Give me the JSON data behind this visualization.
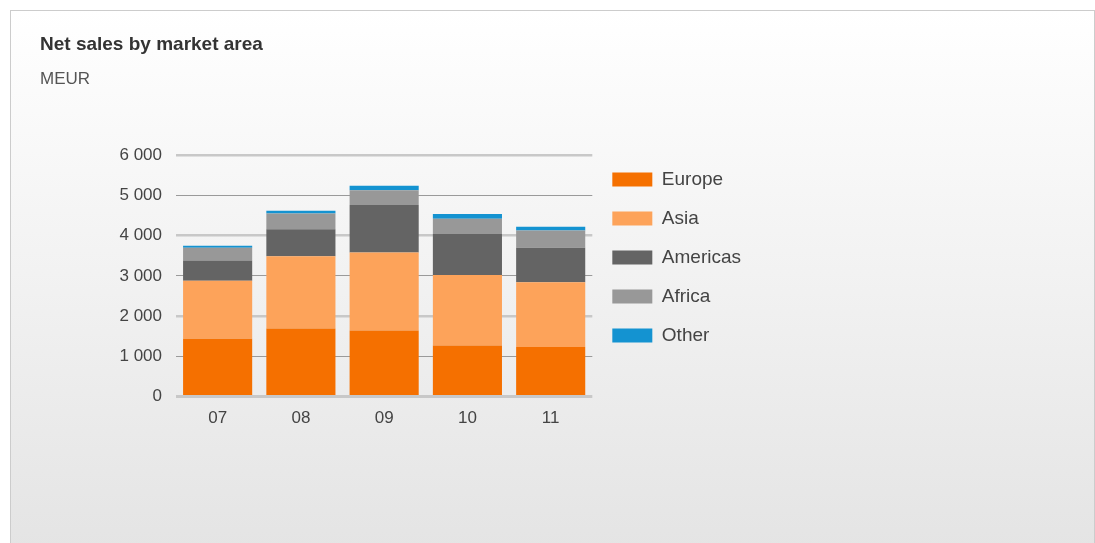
{
  "chart_data": {
    "type": "bar",
    "title": "Net sales by market area",
    "subtitle": "MEUR",
    "stacked": true,
    "categories": [
      "07",
      "08",
      "09",
      "10",
      "11"
    ],
    "series": [
      {
        "name": "Europe",
        "color": "#f57000",
        "values": [
          1440,
          1690,
          1640,
          1270,
          1230
        ]
      },
      {
        "name": "Asia",
        "color": "#fda35a",
        "values": [
          1440,
          1800,
          1940,
          1750,
          1610
        ]
      },
      {
        "name": "Americas",
        "color": "#646464",
        "values": [
          500,
          670,
          1180,
          1020,
          860
        ]
      },
      {
        "name": "Africa",
        "color": "#989898",
        "values": [
          320,
          390,
          370,
          380,
          430
        ]
      },
      {
        "name": "Other",
        "color": "#1493d1",
        "values": [
          50,
          70,
          110,
          120,
          90
        ]
      }
    ],
    "ylim": [
      0,
      6000
    ],
    "yticks": [
      {
        "value": 0,
        "label": "0"
      },
      {
        "value": 1000,
        "label": "1 000"
      },
      {
        "value": 2000,
        "label": "2 000"
      },
      {
        "value": 3000,
        "label": "3 000"
      },
      {
        "value": 4000,
        "label": "4 000"
      },
      {
        "value": 5000,
        "label": "5 000"
      },
      {
        "value": 6000,
        "label": "6 000"
      }
    ],
    "grid": "y",
    "legend": "right"
  }
}
